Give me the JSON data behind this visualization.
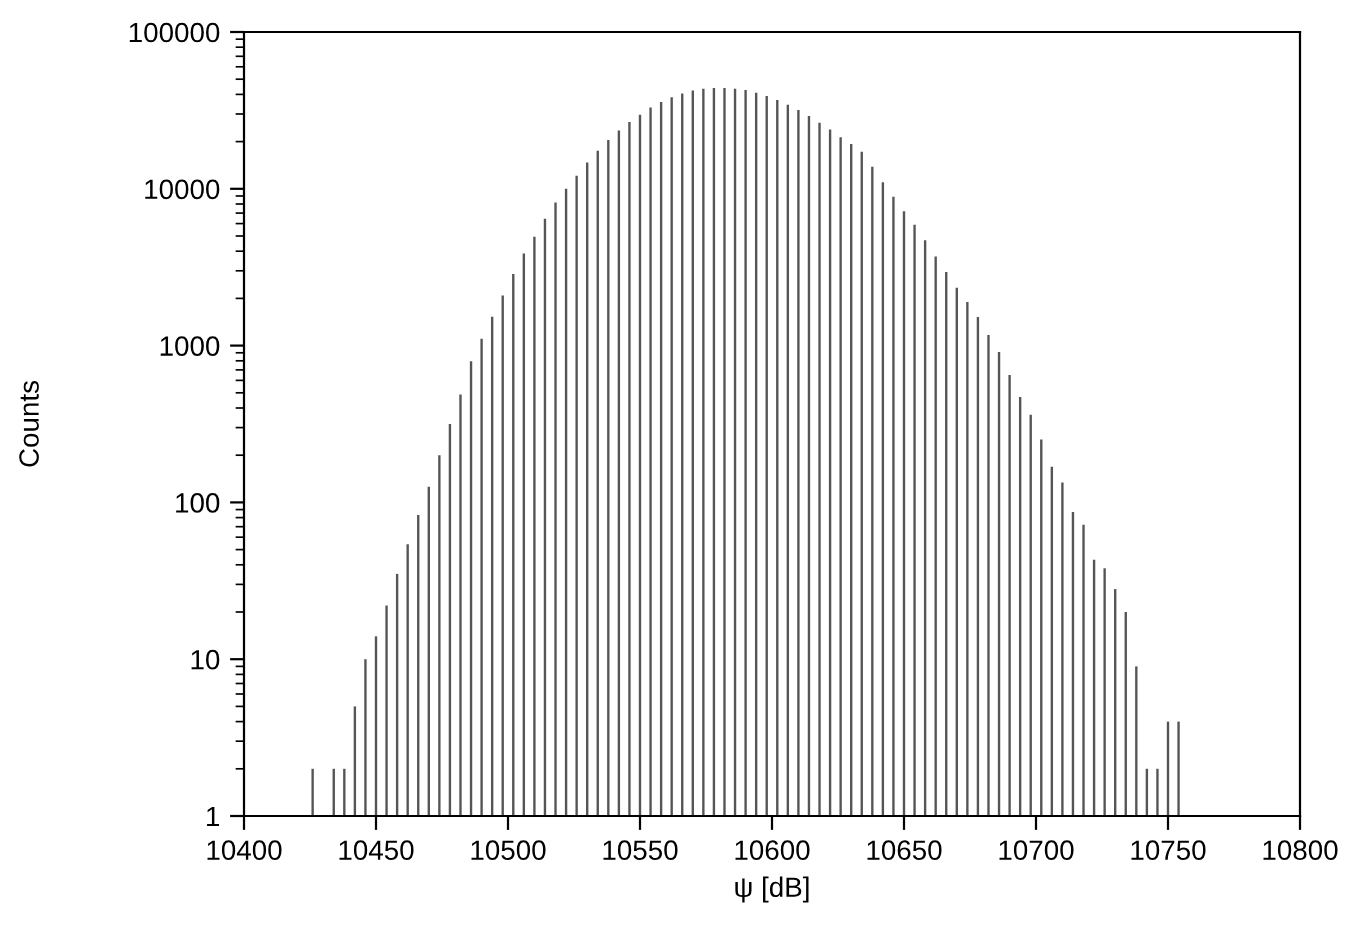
{
  "chart_data": {
    "type": "bar",
    "xlabel": "ψ [dB]",
    "ylabel": "Counts",
    "x": [
      10426,
      10430,
      10434,
      10438,
      10442,
      10446,
      10450,
      10454,
      10458,
      10462,
      10466,
      10470,
      10474,
      10478,
      10482,
      10486,
      10490,
      10494,
      10498,
      10502,
      10506,
      10510,
      10514,
      10518,
      10522,
      10526,
      10530,
      10534,
      10538,
      10542,
      10546,
      10550,
      10554,
      10558,
      10562,
      10566,
      10570,
      10574,
      10578,
      10582,
      10586,
      10590,
      10594,
      10598,
      10602,
      10606,
      10610,
      10614,
      10618,
      10622,
      10626,
      10630,
      10634,
      10638,
      10642,
      10646,
      10650,
      10654,
      10658,
      10662,
      10666,
      10670,
      10674,
      10678,
      10682,
      10686,
      10690,
      10694,
      10698,
      10702,
      10706,
      10710,
      10714,
      10718,
      10722,
      10726,
      10730,
      10734,
      10738,
      10742,
      10746,
      10750,
      10754
    ],
    "values": [
      2,
      null,
      2,
      2,
      5,
      10,
      14,
      22,
      35,
      54,
      83,
      126,
      200,
      316,
      487,
      794,
      1107,
      1530,
      2090,
      2860,
      3870,
      4950,
      6450,
      8170,
      10000,
      12100,
      14700,
      17500,
      20500,
      23500,
      26700,
      29700,
      33000,
      35800,
      38300,
      40600,
      42300,
      43500,
      44000,
      44000,
      43500,
      42700,
      41000,
      39100,
      36800,
      34400,
      31800,
      29100,
      26400,
      23900,
      21300,
      19300,
      17200,
      13800,
      11000,
      8900,
      7200,
      5900,
      4700,
      3700,
      2950,
      2340,
      1900,
      1520,
      1170,
      910,
      650,
      470,
      362,
      252,
      169,
      134,
      87,
      72,
      43,
      38,
      28,
      20,
      9,
      2,
      2,
      4,
      4
    ],
    "color": "#555555",
    "log": "y",
    "xlim": [
      10400,
      10800
    ],
    "xticks": [
      10400,
      10450,
      10500,
      10550,
      10600,
      10650,
      10700,
      10750,
      10800
    ],
    "ylim": [
      1,
      100000
    ],
    "yticks": [
      1,
      10,
      100,
      1000,
      10000,
      100000
    ],
    "grid": false
  }
}
